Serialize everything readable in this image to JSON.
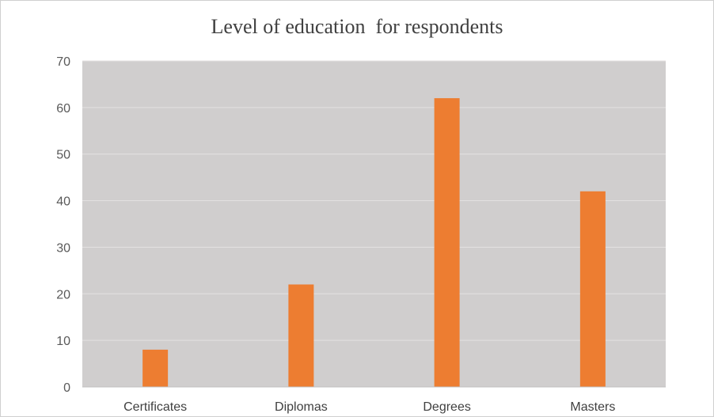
{
  "chart_data": {
    "type": "bar",
    "title": "Level of education  for respondents",
    "xlabel": "",
    "ylabel": "",
    "categories": [
      "Certificates",
      "Diplomas",
      "Degrees",
      "Masters"
    ],
    "values": [
      8,
      22,
      62,
      42
    ],
    "ylim": [
      0,
      70
    ],
    "yticks": [
      0,
      10,
      20,
      30,
      40,
      50,
      60,
      70
    ],
    "grid": true,
    "legend": "none",
    "colors": {
      "bar": "#ED7D31",
      "plot_background": "#D0CECE",
      "gridline": "#E4E2E2",
      "axis": "#BFBFBF"
    }
  }
}
